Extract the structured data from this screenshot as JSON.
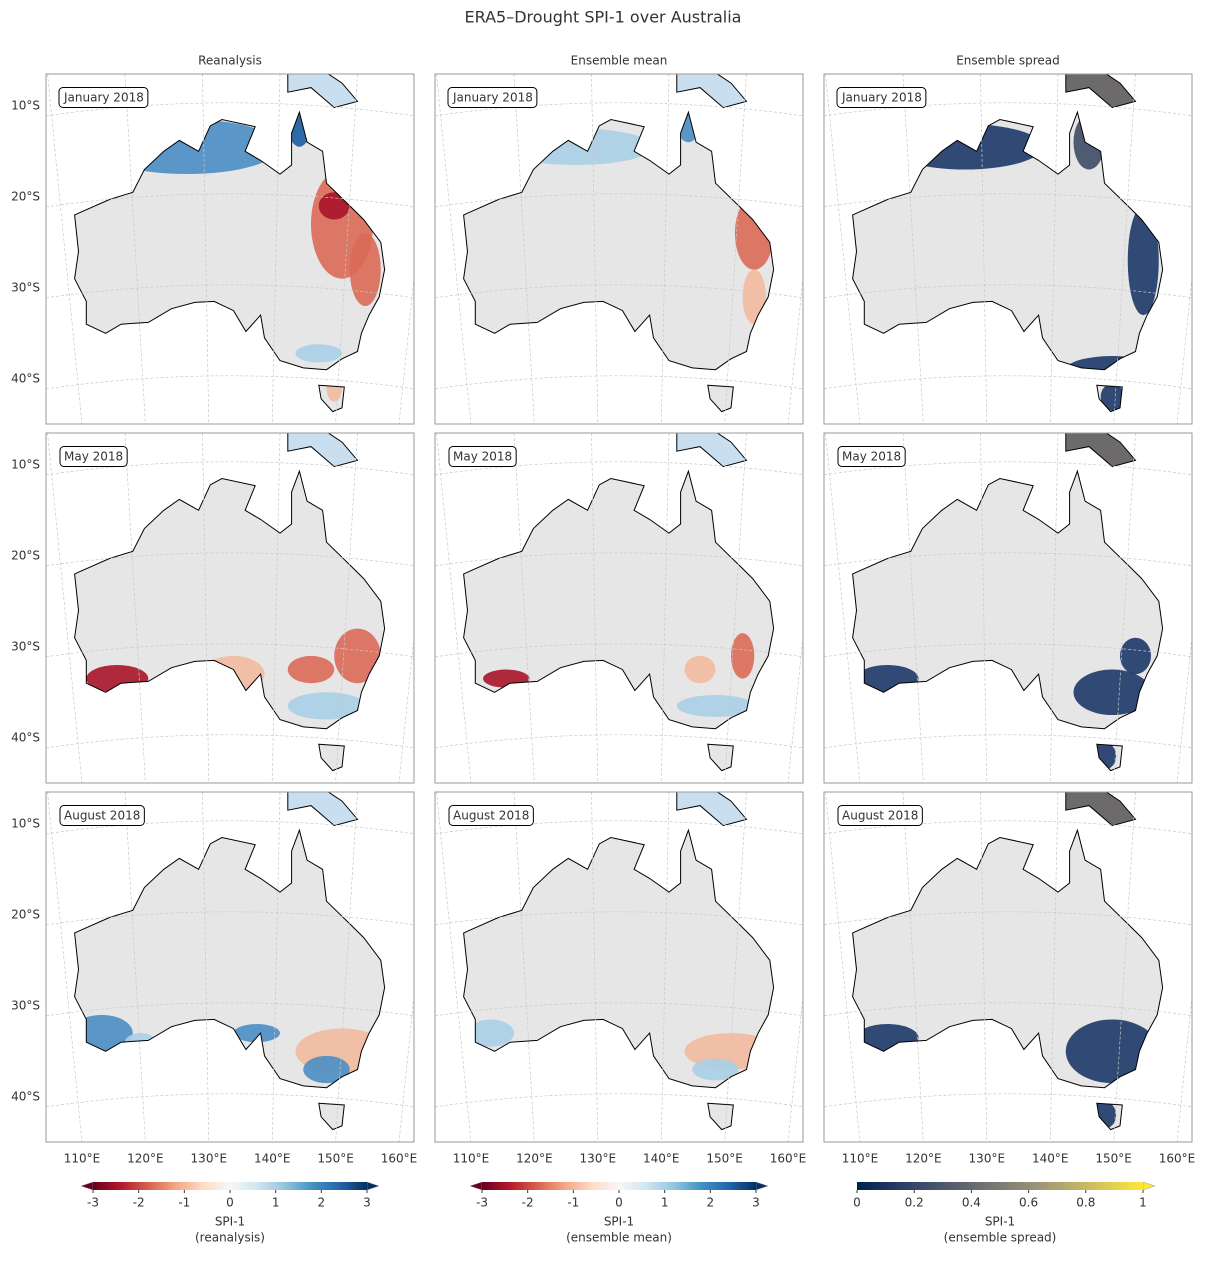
{
  "title": "ERA5–Drought SPI-1 over Australia",
  "columns": [
    "Reanalysis",
    "Ensemble mean",
    "Ensemble spread"
  ],
  "rows": [
    "January 2018",
    "May 2018",
    "August 2018"
  ],
  "lat_labels": [
    "10°S",
    "20°S",
    "30°S",
    "40°S"
  ],
  "lon_labels": [
    "110°E",
    "120°E",
    "130°E",
    "140°E",
    "150°E",
    "160°E"
  ],
  "colorbars": [
    {
      "colormap": "RdBu",
      "lim": [
        -3,
        3
      ],
      "ticks": [
        -3,
        -2,
        -1,
        0,
        1,
        2,
        3
      ],
      "label": [
        "SPI-1",
        "(reanalysis)"
      ]
    },
    {
      "colormap": "RdBu",
      "lim": [
        -3,
        3
      ],
      "ticks": [
        -3,
        -2,
        -1,
        0,
        1,
        2,
        3
      ],
      "label": [
        "SPI-1",
        "(ensemble mean)"
      ]
    },
    {
      "colormap": "cividis",
      "lim": [
        0,
        1
      ],
      "ticks": [
        0,
        0.2,
        0.4,
        0.6,
        0.8,
        1
      ],
      "label": [
        "SPI-1",
        "(ensemble spread)"
      ]
    }
  ]
}
